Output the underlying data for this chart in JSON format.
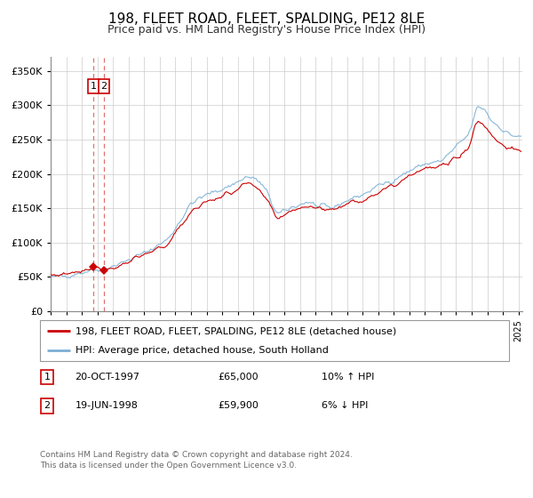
{
  "title": "198, FLEET ROAD, FLEET, SPALDING, PE12 8LE",
  "subtitle": "Price paid vs. HM Land Registry's House Price Index (HPI)",
  "legend_line1": "198, FLEET ROAD, FLEET, SPALDING, PE12 8LE (detached house)",
  "legend_line2": "HPI: Average price, detached house, South Holland",
  "transaction1_date": "20-OCT-1997",
  "transaction1_price": 65000,
  "transaction1_label": "10% ↑ HPI",
  "transaction2_date": "19-JUN-1998",
  "transaction2_price": 59900,
  "transaction2_label": "6% ↓ HPI",
  "footer": "Contains HM Land Registry data © Crown copyright and database right 2024.\nThis data is licensed under the Open Government Licence v3.0.",
  "hpi_color": "#7bafd4",
  "price_color": "#cc0000",
  "dot_color": "#cc0000",
  "vline_color": "#e07070",
  "annotation_box_color": "#cc0000",
  "background_color": "white",
  "grid_color": "#cccccc",
  "ylim": [
    0,
    370000
  ],
  "yticks": [
    0,
    50000,
    100000,
    150000,
    200000,
    250000,
    300000,
    350000
  ],
  "start_year": 1995,
  "end_year": 2025
}
